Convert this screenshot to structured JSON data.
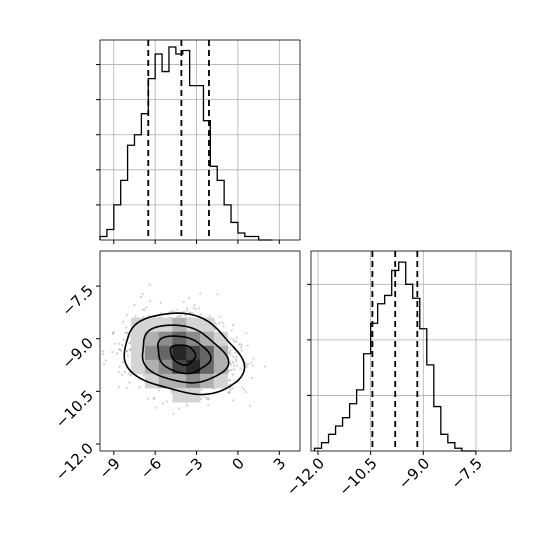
{
  "chart_data": {
    "type": "corner",
    "x_param": {
      "ticks": [
        "−9",
        "−6",
        "−3",
        "0",
        "3"
      ],
      "tick_values": [
        -9,
        -6,
        -3,
        0,
        3
      ],
      "range": [
        -10,
        4.5
      ],
      "quantiles": [
        -6.5,
        -4.1,
        -2.1
      ]
    },
    "y_param": {
      "ticks": [
        "−12.0",
        "−10.5",
        "−9.0",
        "−7.5"
      ],
      "tick_values": [
        -12,
        -10.5,
        -9,
        -7.5
      ],
      "range": [
        -12.2,
        -6.5
      ],
      "quantiles": [
        -10.45,
        -9.8,
        -9.17
      ]
    },
    "hist_x": {
      "bin_edges": [
        -10,
        -9.5,
        -9,
        -8.5,
        -8,
        -7.5,
        -7,
        -6.5,
        -6,
        -5.5,
        -5,
        -4.5,
        -4,
        -3.5,
        -3,
        -2.5,
        -2,
        -1.5,
        -1,
        -0.5,
        0,
        0.5,
        1,
        1.5,
        2,
        2.5
      ],
      "counts": [
        1,
        3,
        10,
        17,
        27,
        30,
        36,
        46,
        53,
        48,
        55,
        53,
        54,
        44,
        44,
        34,
        21,
        17,
        10,
        5,
        2,
        1,
        1,
        0,
        0
      ],
      "ymax": 57
    },
    "hist_y": {
      "bin_edges": [
        -12.1,
        -11.9,
        -11.7,
        -11.5,
        -11.3,
        -11.1,
        -10.9,
        -10.7,
        -10.5,
        -10.3,
        -10.1,
        -9.9,
        -9.7,
        -9.5,
        -9.3,
        -9.1,
        -8.9,
        -8.7,
        -8.5,
        -8.3,
        -8.1,
        -7.9,
        -7.7,
        -7.5
      ],
      "counts": [
        1,
        3,
        6,
        9,
        12,
        17,
        22,
        35,
        46,
        53,
        56,
        65,
        68,
        60,
        55,
        44,
        31,
        16,
        6,
        3,
        1,
        0,
        0
      ],
      "ymax": 72
    },
    "joint": {
      "grid_cells": [
        {
          "x": -7.25,
          "y": -8.6,
          "level": 1
        },
        {
          "x": -6.25,
          "y": -8.6,
          "level": 1
        },
        {
          "x": -5.25,
          "y": -8.6,
          "level": 1
        },
        {
          "x": -4.25,
          "y": -8.6,
          "level": 2
        },
        {
          "x": -3.25,
          "y": -8.6,
          "level": 1
        },
        {
          "x": -2.25,
          "y": -8.6,
          "level": 1
        },
        {
          "x": -7.25,
          "y": -9.0,
          "level": 1
        },
        {
          "x": -6.25,
          "y": -9.0,
          "level": 2
        },
        {
          "x": -5.25,
          "y": -9.0,
          "level": 3
        },
        {
          "x": -4.25,
          "y": -9.0,
          "level": 4
        },
        {
          "x": -3.25,
          "y": -9.0,
          "level": 3
        },
        {
          "x": -2.25,
          "y": -9.0,
          "level": 2
        },
        {
          "x": -1.25,
          "y": -9.0,
          "level": 1
        },
        {
          "x": -7.25,
          "y": -9.4,
          "level": 1
        },
        {
          "x": -6.25,
          "y": -9.4,
          "level": 3
        },
        {
          "x": -5.25,
          "y": -9.4,
          "level": 4
        },
        {
          "x": -4.25,
          "y": -9.4,
          "level": 6
        },
        {
          "x": -3.25,
          "y": -9.4,
          "level": 5
        },
        {
          "x": -2.25,
          "y": -9.4,
          "level": 4
        },
        {
          "x": -1.25,
          "y": -9.4,
          "level": 2
        },
        {
          "x": -7.25,
          "y": -9.8,
          "level": 1
        },
        {
          "x": -6.25,
          "y": -9.8,
          "level": 2
        },
        {
          "x": -5.25,
          "y": -9.8,
          "level": 3
        },
        {
          "x": -4.25,
          "y": -9.8,
          "level": 5
        },
        {
          "x": -3.25,
          "y": -9.8,
          "level": 6
        },
        {
          "x": -2.25,
          "y": -9.8,
          "level": 4
        },
        {
          "x": -1.25,
          "y": -9.8,
          "level": 2
        },
        {
          "x": -6.25,
          "y": -10.2,
          "level": 1
        },
        {
          "x": -5.25,
          "y": -10.2,
          "level": 2
        },
        {
          "x": -4.25,
          "y": -10.2,
          "level": 2
        },
        {
          "x": -3.25,
          "y": -10.2,
          "level": 3
        },
        {
          "x": -2.25,
          "y": -10.2,
          "level": 2
        },
        {
          "x": -1.25,
          "y": -10.2,
          "level": 1
        },
        {
          "x": -4.25,
          "y": -10.6,
          "level": 1
        },
        {
          "x": -3.25,
          "y": -10.6,
          "level": 1
        }
      ],
      "center": [
        -4.0,
        -9.45
      ],
      "contour_radii": [
        [
          0.9,
          0.28
        ],
        [
          1.9,
          0.52
        ],
        [
          3.1,
          0.8
        ],
        [
          4.3,
          1.12
        ]
      ]
    }
  }
}
